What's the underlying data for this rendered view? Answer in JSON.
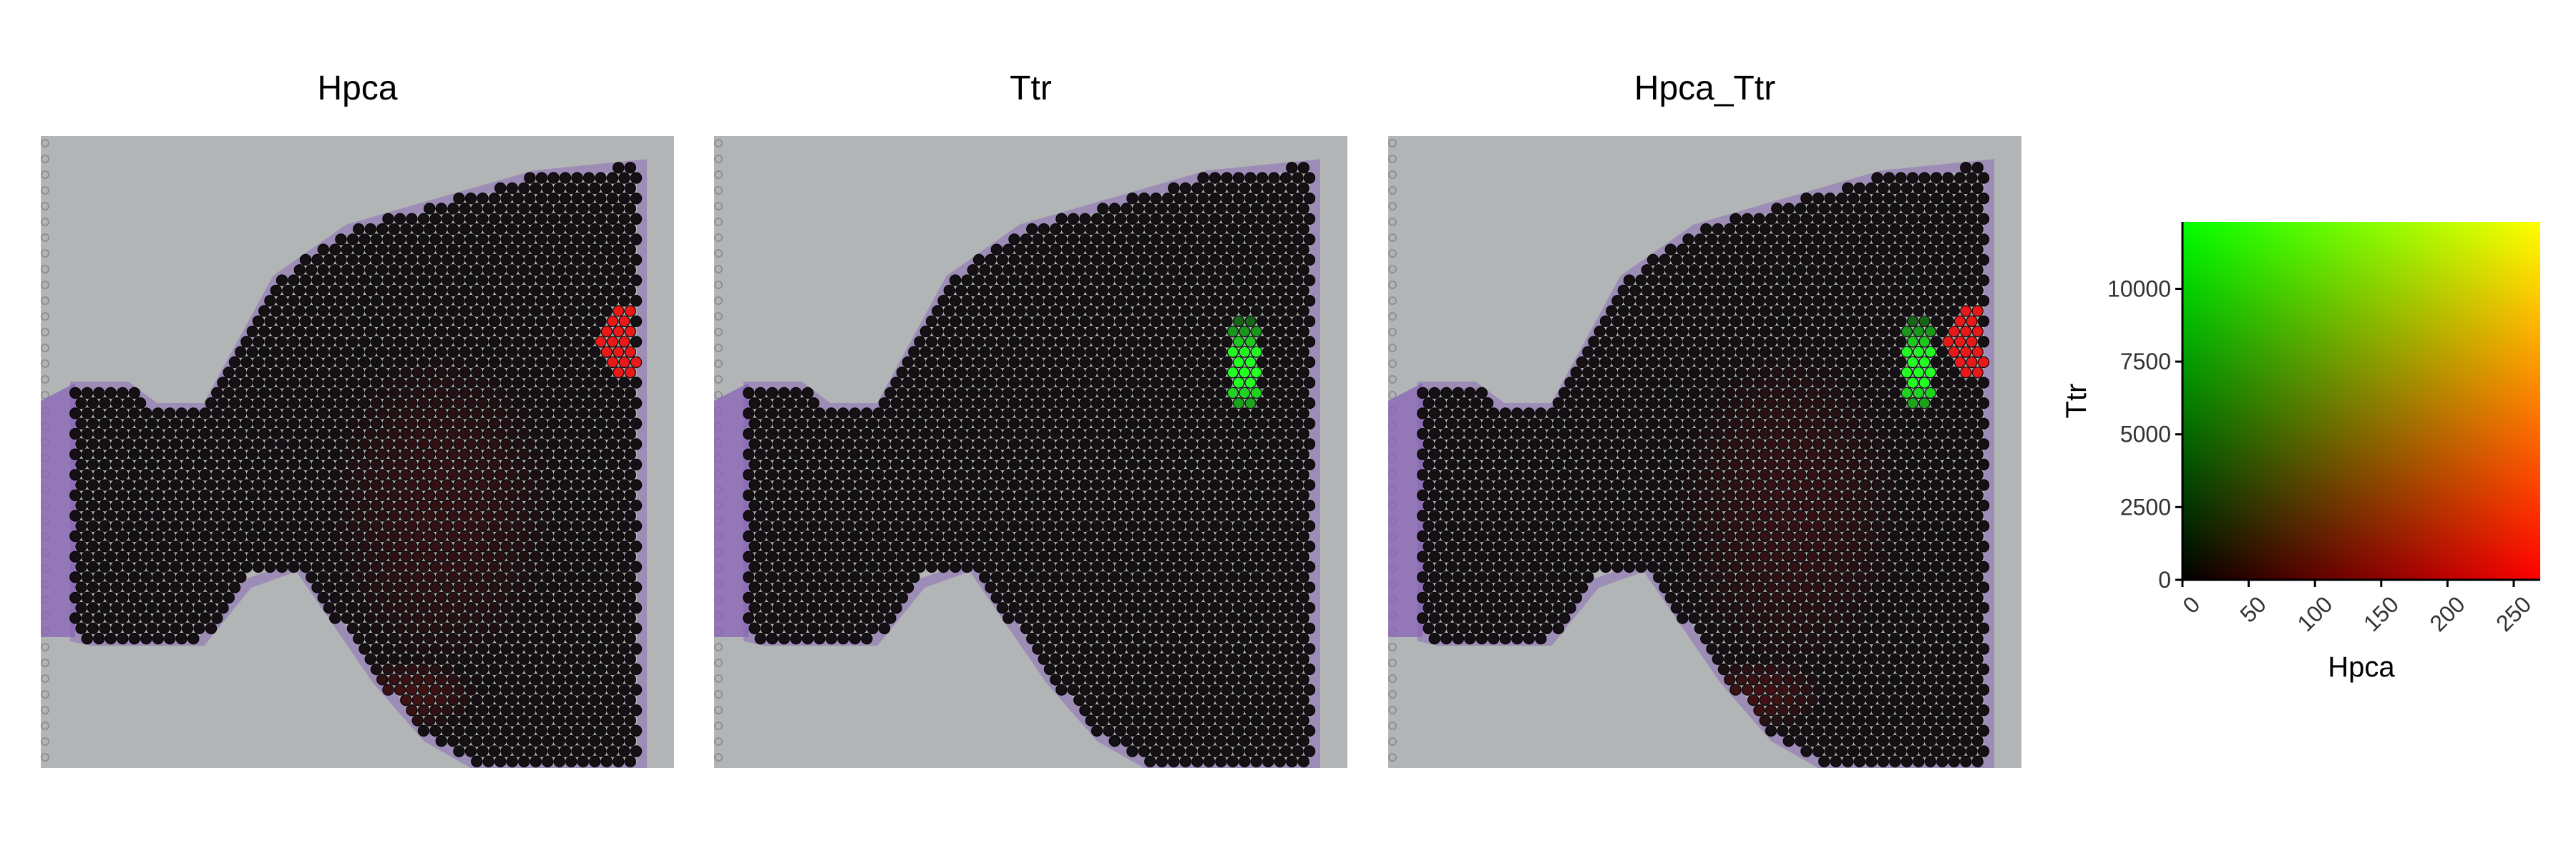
{
  "panels": [
    {
      "title": "Hpca",
      "channel": "red"
    },
    {
      "title": "Ttr",
      "channel": "green"
    },
    {
      "title": "Hpca_Ttr",
      "channel": "both"
    }
  ],
  "colors": {
    "tissue_background": "#b1b5b5",
    "spot_dark": "#141013",
    "spot_edge": "#050305",
    "hpca_high": "#ff1a1a",
    "ttr_high": "#22ff22",
    "tissue_stain_edge": "#8a63b8"
  },
  "chart_data": {
    "type": "heatmap",
    "legend_type": "bivariate-color-scale",
    "xlabel": "Hpca",
    "ylabel": "Ttr",
    "x_ticks": [
      0,
      50,
      100,
      150,
      200,
      250
    ],
    "y_ticks": [
      0,
      2500,
      5000,
      7500,
      10000
    ],
    "x_tick_labels": [
      "0",
      "50",
      "100",
      "150",
      "200",
      "250"
    ],
    "y_tick_labels": [
      "0",
      "2500",
      "5000",
      "7500",
      "10000"
    ],
    "xlim": [
      0,
      270
    ],
    "ylim": [
      0,
      12300
    ],
    "corner_colors": {
      "low_low": "#000000",
      "high_hpca": "#ff0000",
      "high_ttr": "#00ff00",
      "high_both": "#ffff00"
    }
  }
}
